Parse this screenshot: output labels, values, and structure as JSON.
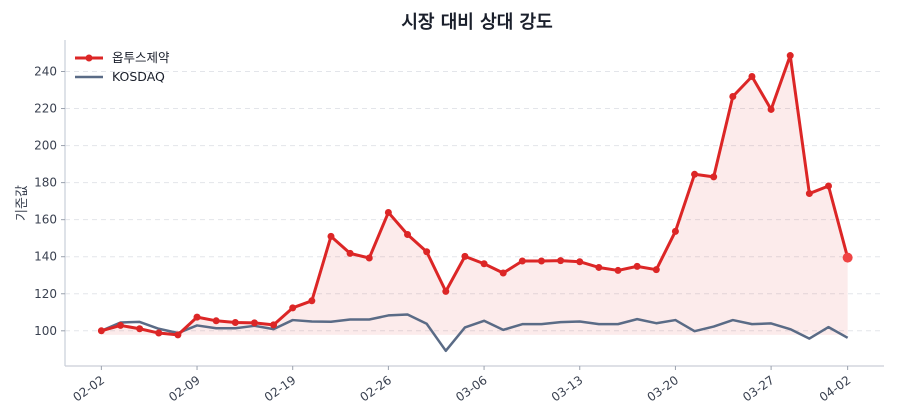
{
  "chart_data": {
    "type": "line",
    "title": "시장 대비 상대 강도",
    "xlabel": "",
    "ylabel": "기준값",
    "x": [
      "02-02",
      "02-03",
      "02-04",
      "02-05",
      "02-06",
      "02-09",
      "02-10",
      "02-11",
      "02-12",
      "02-13",
      "02-19",
      "02-20",
      "02-23",
      "02-24",
      "02-25",
      "02-26",
      "02-27",
      "03-03",
      "03-04",
      "03-05",
      "03-06",
      "03-09",
      "03-10",
      "03-11",
      "03-12",
      "03-13",
      "03-16",
      "03-17",
      "03-18",
      "03-19",
      "03-20",
      "03-23",
      "03-24",
      "03-25",
      "03-26",
      "03-27",
      "03-30",
      "03-31",
      "04-01",
      "04-02"
    ],
    "xticks": [
      "02-02",
      "02-09",
      "02-19",
      "02-26",
      "03-06",
      "03-13",
      "03-20",
      "03-27",
      "04-02"
    ],
    "yticks": [
      100,
      120,
      140,
      160,
      180,
      200,
      220,
      240
    ],
    "ylim": [
      81,
      257
    ],
    "grid": "y-dashed",
    "legend": "top-left",
    "series": [
      {
        "name": "옵투스제약",
        "color": "#dc2626",
        "markers": true,
        "fill": true,
        "values": [
          100,
          102.9,
          101.1,
          98.8,
          97.8,
          107.4,
          105.4,
          104.5,
          104.3,
          103.2,
          112.4,
          116.2,
          151.0,
          141.8,
          139.3,
          163.9,
          152.0,
          142.7,
          121.3,
          140.2,
          136.2,
          131.2,
          137.7,
          137.7,
          137.9,
          137.3,
          134.2,
          132.6,
          134.8,
          133.0,
          153.7,
          184.5,
          183.1,
          226.5,
          237.3,
          219.5,
          248.6,
          174.1,
          178.2,
          139.5
        ]
      },
      {
        "name": "KOSDAQ",
        "color": "#5a6b86",
        "markers": false,
        "fill": false,
        "values": [
          100,
          104.5,
          104.8,
          101.1,
          98.8,
          102.9,
          101.4,
          101.4,
          102.7,
          100.9,
          105.8,
          105.0,
          104.9,
          106.1,
          106.1,
          108.3,
          108.8,
          103.8,
          89.2,
          101.8,
          105.4,
          100.5,
          103.6,
          103.6,
          104.7,
          105.0,
          103.6,
          103.6,
          106.3,
          104.1,
          105.8,
          99.8,
          102.3,
          105.8,
          103.6,
          104.0,
          100.9,
          95.8,
          102.0,
          96.2
        ]
      }
    ]
  }
}
